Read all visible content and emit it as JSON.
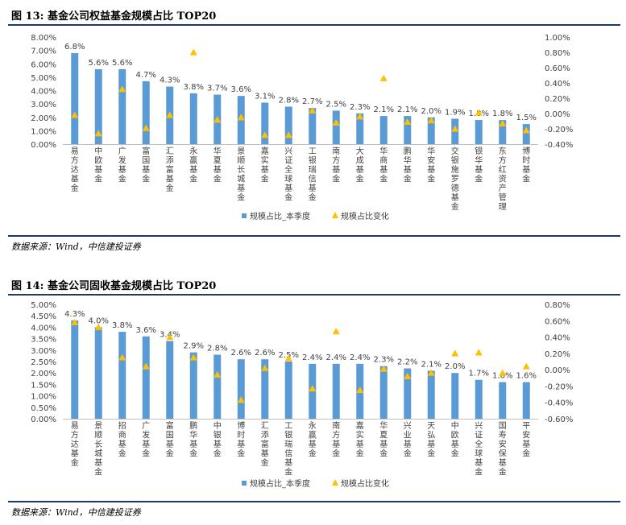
{
  "figures": [
    {
      "title": "图 13: 基金公司权益基金规模占比 TOP20",
      "source": "数据来源：Wind，中信建投证券"
    },
    {
      "title": "图 14: 基金公司固收基金规模占比 TOP20",
      "source": "数据来源：Wind，中信建投证券"
    }
  ],
  "colors": {
    "bar": "#5b9bd5",
    "marker": "#ffc000",
    "rule": "#1f3864",
    "axis": "#bfbfbf",
    "text": "#404040"
  },
  "chart_data": [
    {
      "type": "bar",
      "categories": [
        "易方达基金",
        "中欧基金",
        "广发基金",
        "富国基金",
        "汇添富基金",
        "永赢基金",
        "华夏基金",
        "景顺长城基金",
        "嘉实基金",
        "兴证全球基金",
        "工银瑞信基金",
        "南方基金",
        "大成基金",
        "华商基金",
        "鹏华基金",
        "华安基金",
        "交银施罗德基金",
        "银华基金",
        "东方红资产管理",
        "博时基金"
      ],
      "series": [
        {
          "name": "规模占比_本季度",
          "type": "bar",
          "axis": "left",
          "values": [
            6.8,
            5.6,
            5.6,
            4.7,
            4.3,
            3.8,
            3.7,
            3.6,
            3.1,
            2.8,
            2.7,
            2.5,
            2.3,
            2.1,
            2.1,
            2.0,
            1.9,
            1.8,
            1.8,
            1.5
          ],
          "labels": [
            "6.8%",
            "5.6%",
            "5.6%",
            "4.7%",
            "4.3%",
            "3.8%",
            "3.7%",
            "3.6%",
            "3.1%",
            "2.8%",
            "2.7%",
            "2.5%",
            "2.3%",
            "2.1%",
            "2.1%",
            "2.0%",
            "1.9%",
            "1.8%",
            "1.8%",
            "1.5%"
          ]
        },
        {
          "name": "规模占比变化",
          "type": "scatter",
          "axis": "right",
          "values": [
            -0.02,
            -0.26,
            0.32,
            -0.19,
            -0.02,
            0.8,
            -0.08,
            -0.05,
            -0.28,
            -0.28,
            0.04,
            -0.12,
            -0.04,
            0.46,
            -0.11,
            -0.09,
            -0.2,
            0.01,
            -0.13,
            -0.22
          ]
        }
      ],
      "left_axis": {
        "min": 0,
        "max": 8,
        "step": 1,
        "ticks": [
          "0.00%",
          "1.00%",
          "2.00%",
          "3.00%",
          "4.00%",
          "5.00%",
          "6.00%",
          "7.00%",
          "8.00%"
        ]
      },
      "right_axis": {
        "min": -0.4,
        "max": 1.0,
        "step": 0.2,
        "ticks": [
          "-0.40%",
          "-0.20%",
          "0.00%",
          "0.20%",
          "0.40%",
          "0.60%",
          "0.80%",
          "1.00%"
        ]
      },
      "legend": {
        "position": "bottom",
        "items": [
          "规模占比_本季度",
          "规模占比变化"
        ]
      },
      "grid": false
    },
    {
      "type": "bar",
      "categories": [
        "易方达基金",
        "景顺长城基金",
        "招商基金",
        "广发基金",
        "富国基金",
        "鹏华基金",
        "中银基金",
        "博时基金",
        "汇添富基金",
        "工银瑞信基金",
        "永赢基金",
        "南方基金",
        "嘉实基金",
        "华夏基金",
        "兴业基金",
        "天弘基金",
        "中欧基金",
        "兴证全球基金",
        "国寿安保基金",
        "平安基金"
      ],
      "series": [
        {
          "name": "规模占比_本季度",
          "type": "bar",
          "axis": "left",
          "values": [
            4.3,
            4.0,
            3.8,
            3.6,
            3.4,
            2.9,
            2.8,
            2.6,
            2.6,
            2.5,
            2.4,
            2.4,
            2.4,
            2.3,
            2.2,
            2.1,
            2.0,
            1.7,
            1.6,
            1.6
          ],
          "labels": [
            "4.3%",
            "4.0%",
            "3.8%",
            "3.6%",
            "3.4%",
            "2.9%",
            "2.8%",
            "2.6%",
            "2.6%",
            "2.5%",
            "2.4%",
            "2.4%",
            "2.4%",
            "2.3%",
            "2.2%",
            "2.1%",
            "2.0%",
            "1.7%",
            "1.6%",
            "1.6%"
          ]
        },
        {
          "name": "规模占比变化",
          "type": "scatter",
          "axis": "right",
          "values": [
            0.58,
            0.52,
            0.15,
            0.04,
            0.4,
            0.15,
            -0.06,
            -0.37,
            0.02,
            0.14,
            -0.23,
            0.47,
            -0.25,
            0.01,
            -0.08,
            -0.04,
            0.2,
            0.21,
            -0.04,
            0.04
          ]
        }
      ],
      "left_axis": {
        "min": 0,
        "max": 5,
        "step": 0.5,
        "ticks": [
          "0.00%",
          "0.50%",
          "1.00%",
          "1.50%",
          "2.00%",
          "2.50%",
          "3.00%",
          "3.50%",
          "4.00%",
          "4.50%",
          "5.00%"
        ]
      },
      "right_axis": {
        "min": -0.6,
        "max": 0.8,
        "step": 0.2,
        "ticks": [
          "-0.60%",
          "-0.40%",
          "-0.20%",
          "0.00%",
          "0.20%",
          "0.40%",
          "0.60%",
          "0.80%"
        ]
      },
      "legend": {
        "position": "bottom",
        "items": [
          "规模占比_本季度",
          "规模占比变化"
        ]
      },
      "grid": false
    }
  ]
}
